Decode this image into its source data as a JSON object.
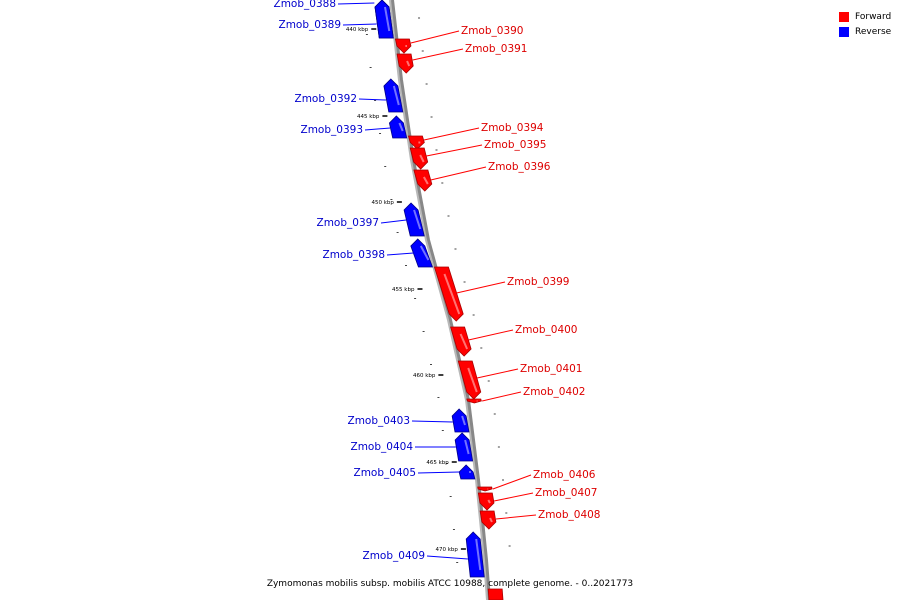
{
  "legend": {
    "forward": {
      "label": "Forward",
      "color": "#ff0000"
    },
    "reverse": {
      "label": "Reverse",
      "color": "#0000ff"
    }
  },
  "caption": "Zymomonas mobilis subsp. mobilis ATCC 10988, complete genome. - 0..2021773",
  "scale_labels": [
    "440 kbp",
    "445 kbp",
    "450 kbp",
    "455 kbp",
    "460 kbp",
    "465 kbp",
    "470 kbp"
  ],
  "genes": [
    {
      "label": "Zmob_0388",
      "strand": "reverse"
    },
    {
      "label": "Zmob_0389",
      "strand": "reverse"
    },
    {
      "label": "Zmob_0390",
      "strand": "forward"
    },
    {
      "label": "Zmob_0391",
      "strand": "forward"
    },
    {
      "label": "Zmob_0392",
      "strand": "reverse"
    },
    {
      "label": "Zmob_0393",
      "strand": "reverse"
    },
    {
      "label": "Zmob_0394",
      "strand": "forward"
    },
    {
      "label": "Zmob_0395",
      "strand": "forward"
    },
    {
      "label": "Zmob_0396",
      "strand": "forward"
    },
    {
      "label": "Zmob_0397",
      "strand": "reverse"
    },
    {
      "label": "Zmob_0398",
      "strand": "reverse"
    },
    {
      "label": "Zmob_0399",
      "strand": "forward"
    },
    {
      "label": "Zmob_0400",
      "strand": "forward"
    },
    {
      "label": "Zmob_0401",
      "strand": "forward"
    },
    {
      "label": "Zmob_0402",
      "strand": "forward"
    },
    {
      "label": "Zmob_0403",
      "strand": "reverse"
    },
    {
      "label": "Zmob_0404",
      "strand": "reverse"
    },
    {
      "label": "Zmob_0405",
      "strand": "reverse"
    },
    {
      "label": "Zmob_0406",
      "strand": "forward"
    },
    {
      "label": "Zmob_0407",
      "strand": "forward"
    },
    {
      "label": "Zmob_0408",
      "strand": "forward"
    },
    {
      "label": "Zmob_0409",
      "strand": "reverse"
    }
  ]
}
